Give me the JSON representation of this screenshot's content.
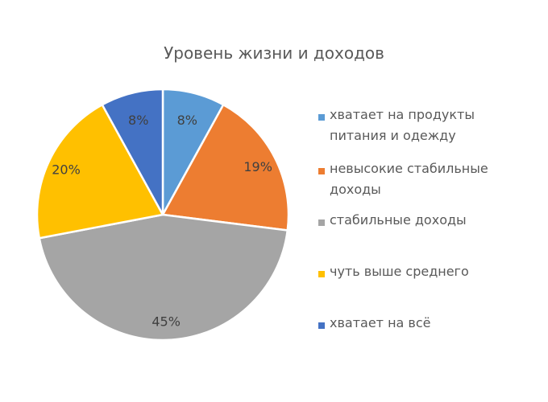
{
  "chart_data": {
    "type": "pie",
    "title": "Уровень жизни и доходов",
    "categories": [
      "хватает на продукты питания и одежду",
      "невысокие стабильные доходы",
      "стабильные доходы",
      "чуть выше среднего",
      "хватает на всё"
    ],
    "values": [
      8,
      19,
      45,
      20,
      8
    ],
    "labels": [
      "8%",
      "19%",
      "45%",
      "20%",
      "8%"
    ],
    "colors": [
      "#5B9BD5",
      "#ED7D31",
      "#A5A5A5",
      "#FFC000",
      "#4472C4"
    ],
    "legend_position": "right",
    "start_angle_deg": 0,
    "direction": "clockwise"
  },
  "legend": {
    "items": [
      {
        "line1": "хватает на продукты",
        "line2": "питания и одежду"
      },
      {
        "line1": "невысокие стабильные",
        "line2": "доходы"
      },
      {
        "line1": "стабильные доходы",
        "line2": ""
      },
      {
        "line1": "чуть выше среднего",
        "line2": ""
      },
      {
        "line1": "хватает на всё",
        "line2": ""
      }
    ]
  }
}
